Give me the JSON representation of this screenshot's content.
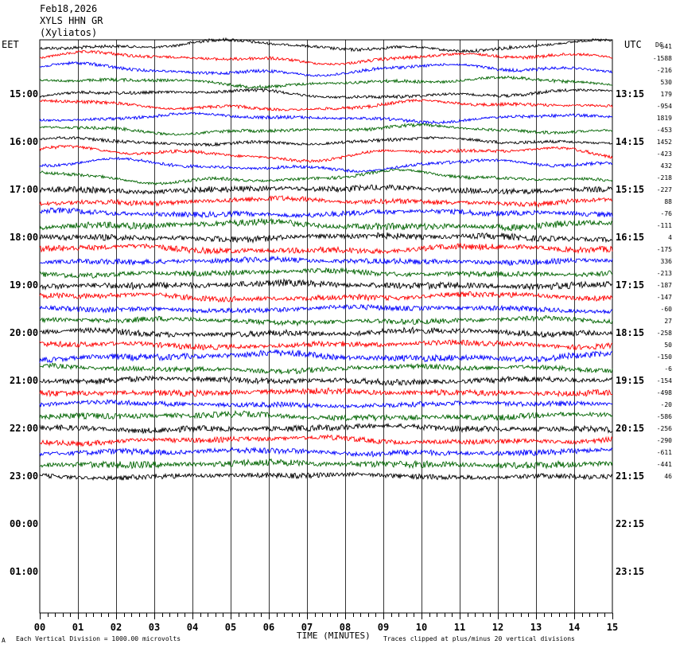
{
  "header": {
    "date": "Feb18,2026",
    "station": "XYLS HHN GR",
    "name": "(Xyliatos)",
    "left_tz": "EET",
    "right_tz": "UTC",
    "dc_label": "DC"
  },
  "footer": {
    "scale_text": "Each Vertical Division = 1000.00 microvolts",
    "axis_title": "TIME (MINUTES)",
    "clip_text": "Traces clipped at plus/minus 20 vertical divisions",
    "corner_mark": "A"
  },
  "chart_data": {
    "type": "line",
    "title": "",
    "xlabel": "TIME (MINUTES)",
    "ylabel": "",
    "x_range": [
      0,
      15
    ],
    "x_ticks": [
      "00",
      "01",
      "02",
      "03",
      "04",
      "05",
      "06",
      "07",
      "08",
      "09",
      "10",
      "11",
      "12",
      "13",
      "14",
      "15"
    ],
    "grid": true,
    "trace_interval_minutes": 15,
    "trace_colors": [
      "#000000",
      "#ff0000",
      "#0000ff",
      "#006400"
    ],
    "left_time_labels": [
      "15:00",
      "16:00",
      "17:00",
      "18:00",
      "19:00",
      "20:00",
      "21:00",
      "22:00",
      "23:00",
      "00:00",
      "01:00"
    ],
    "right_time_labels": [
      "13:15",
      "14:15",
      "15:15",
      "16:15",
      "17:15",
      "18:15",
      "19:15",
      "20:15",
      "21:15",
      "22:15",
      "23:15"
    ],
    "dc_offsets": [
      "541",
      "-1588",
      "-216",
      "530",
      "179",
      "-954",
      "1819",
      "-453",
      "1452",
      "-423",
      "432",
      "-218",
      "-227",
      "88",
      "-76",
      "-111",
      "4",
      "-175",
      "336",
      "-213",
      "-187",
      "-147",
      "-60",
      "27",
      "-258",
      "50",
      "-150",
      "-6",
      "-154",
      "-498",
      "-20",
      "-586",
      "-256",
      "-290",
      "-611",
      "-441",
      "46"
    ],
    "trace_count": 37
  }
}
